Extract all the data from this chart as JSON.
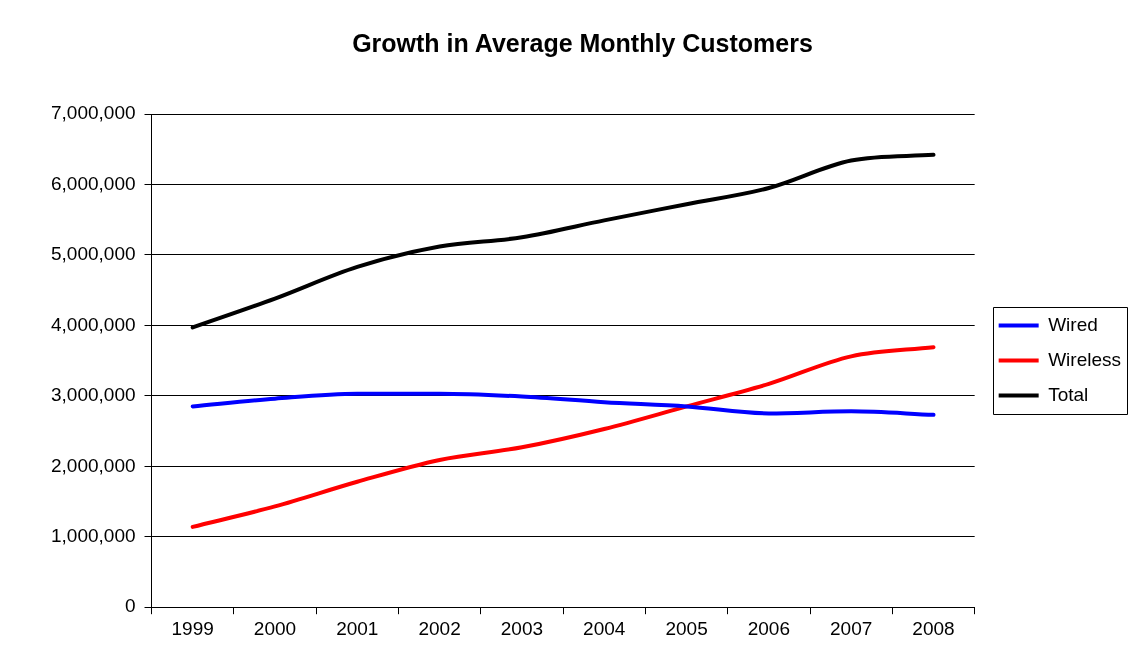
{
  "chart_data": {
    "type": "line",
    "title": "Growth in Average Monthly Customers",
    "categories": [
      "1999",
      "2000",
      "2001",
      "2002",
      "2003",
      "2004",
      "2005",
      "2006",
      "2007",
      "2008"
    ],
    "series": [
      {
        "name": "Wired",
        "color": "#0000ff",
        "values": [
          2850000,
          2960000,
          3030000,
          3030000,
          2990000,
          2910000,
          2850000,
          2750000,
          2780000,
          2730000
        ]
      },
      {
        "name": "Wireless",
        "color": "#ff0000",
        "values": [
          1140000,
          1430000,
          1780000,
          2090000,
          2270000,
          2530000,
          2850000,
          3170000,
          3560000,
          3690000
        ]
      },
      {
        "name": "Total",
        "color": "#000000",
        "values": [
          3970000,
          4380000,
          4830000,
          5120000,
          5250000,
          5490000,
          5720000,
          5950000,
          6340000,
          6420000
        ]
      }
    ],
    "ylim": [
      0,
      7000000
    ],
    "yticks": [
      0,
      {
        "value": 1000000,
        "label": "1,000,000"
      },
      {
        "value": 2000000,
        "label": "2,000,000"
      },
      {
        "value": 3000000,
        "label": "3,000,000"
      },
      {
        "value": 4000000,
        "label": "4,000,000"
      },
      {
        "value": 5000000,
        "label": "5,000,000"
      },
      {
        "value": 6000000,
        "label": "6,000,000"
      },
      {
        "value": 7000000,
        "label": "7,000,000"
      }
    ],
    "grid": "y",
    "legend": "right",
    "line_style": "solid"
  }
}
